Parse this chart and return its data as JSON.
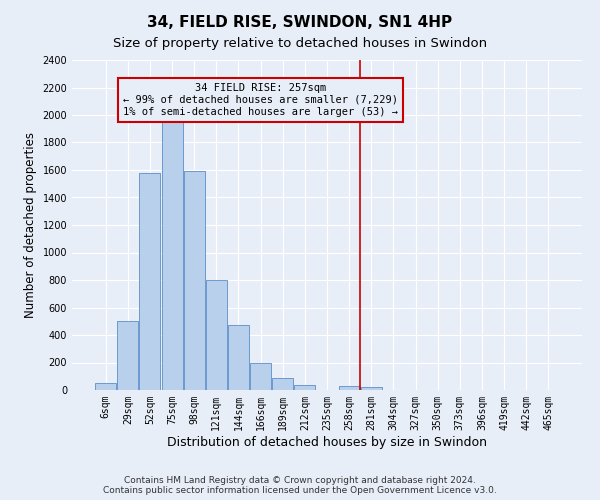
{
  "title": "34, FIELD RISE, SWINDON, SN1 4HP",
  "subtitle": "Size of property relative to detached houses in Swindon",
  "xlabel": "Distribution of detached houses by size in Swindon",
  "ylabel": "Number of detached properties",
  "footer_line1": "Contains HM Land Registry data © Crown copyright and database right 2024.",
  "footer_line2": "Contains public sector information licensed under the Open Government Licence v3.0.",
  "bar_labels": [
    "6sqm",
    "29sqm",
    "52sqm",
    "75sqm",
    "98sqm",
    "121sqm",
    "144sqm",
    "166sqm",
    "189sqm",
    "212sqm",
    "235sqm",
    "258sqm",
    "281sqm",
    "304sqm",
    "327sqm",
    "350sqm",
    "373sqm",
    "396sqm",
    "419sqm",
    "442sqm",
    "465sqm"
  ],
  "bar_heights": [
    50,
    500,
    1580,
    1950,
    1590,
    800,
    470,
    195,
    90,
    35,
    0,
    30,
    20,
    0,
    0,
    0,
    0,
    0,
    0,
    0,
    0
  ],
  "bar_color": "#b8d0eb",
  "bar_edge_color": "#5b8fc9",
  "vline_x_index": 11,
  "vline_color": "#cc0000",
  "annotation_title": "34 FIELD RISE: 257sqm",
  "annotation_line1": "← 99% of detached houses are smaller (7,229)",
  "annotation_line2": "1% of semi-detached houses are larger (53) →",
  "annotation_box_color": "#cc0000",
  "ylim": [
    0,
    2400
  ],
  "yticks": [
    0,
    200,
    400,
    600,
    800,
    1000,
    1200,
    1400,
    1600,
    1800,
    2000,
    2200,
    2400
  ],
  "background_color": "#e8eef8",
  "grid_color": "#ffffff",
  "title_fontsize": 11,
  "subtitle_fontsize": 9.5,
  "xlabel_fontsize": 9,
  "ylabel_fontsize": 8.5,
  "tick_fontsize": 7,
  "annotation_fontsize": 7.5,
  "footer_fontsize": 6.5
}
